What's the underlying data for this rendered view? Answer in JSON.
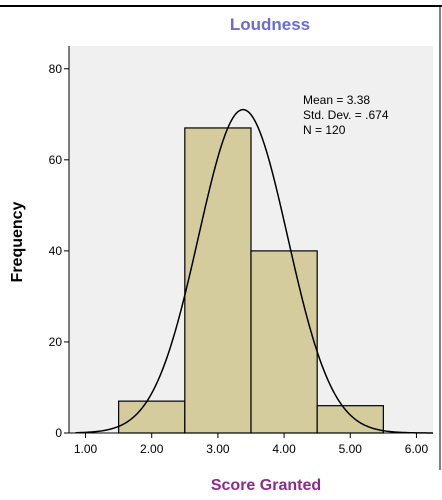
{
  "chart_data": {
    "type": "bar",
    "title": "Loudness",
    "xlabel": "Score Granted",
    "ylabel": "Frequency",
    "bins": [
      {
        "from": 1.5,
        "to": 2.5,
        "value": 7
      },
      {
        "from": 2.5,
        "to": 3.5,
        "value": 67
      },
      {
        "from": 3.5,
        "to": 4.5,
        "value": 40
      },
      {
        "from": 4.5,
        "to": 5.5,
        "value": 6
      }
    ],
    "xlim": [
      0.75,
      6.25
    ],
    "ylim": [
      0,
      85
    ],
    "xticks": [
      "1.00",
      "2.00",
      "3.00",
      "4.00",
      "5.00",
      "6.00"
    ],
    "xtick_values": [
      1,
      2,
      3,
      4,
      5,
      6
    ],
    "yticks": [
      "0",
      "20",
      "40",
      "60",
      "80"
    ],
    "ytick_values": [
      0,
      20,
      40,
      60,
      80
    ],
    "normal_curve": {
      "mean": 3.38,
      "sd": 0.674,
      "n": 120,
      "bin_width": 1
    },
    "stats_text": [
      "Mean = 3.38",
      "Std. Dev. = .674",
      "N = 120"
    ],
    "grid": false,
    "colors": {
      "bar_fill": "#d4cc9c",
      "plot_bg": "#f0f0f0",
      "title": "#6b6bd6",
      "xlabel": "#8b2c8b",
      "ylabel": "#000000"
    }
  }
}
